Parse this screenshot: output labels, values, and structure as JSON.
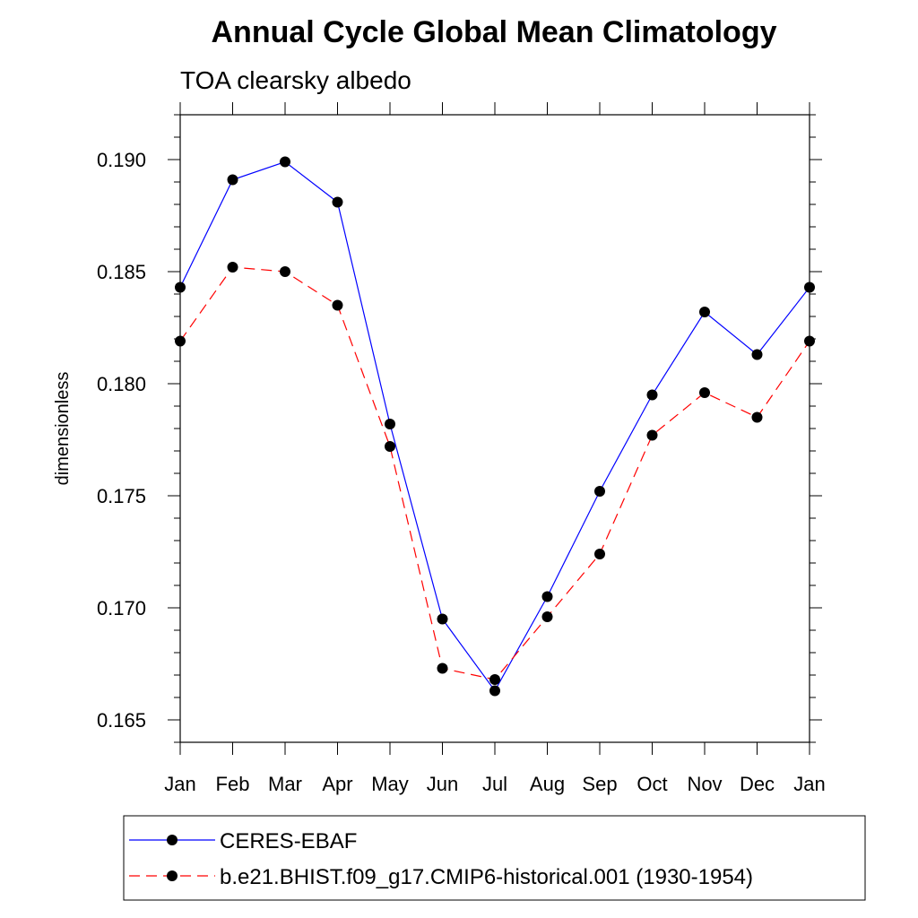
{
  "chart_data": {
    "type": "line",
    "title": "Annual Cycle Global Mean Climatology",
    "subtitle": "TOA clearsky albedo",
    "ylabel": "dimensionless",
    "xlabel": "",
    "categories": [
      "Jan",
      "Feb",
      "Mar",
      "Apr",
      "May",
      "Jun",
      "Jul",
      "Aug",
      "Sep",
      "Oct",
      "Nov",
      "Dec",
      "Jan"
    ],
    "ylim": [
      0.164,
      0.192
    ],
    "yticks": [
      0.165,
      0.17,
      0.175,
      0.18,
      0.185,
      0.19
    ],
    "ytick_labels": [
      "0.165",
      "0.170",
      "0.175",
      "0.180",
      "0.185",
      "0.190"
    ],
    "grid": false,
    "legend_position": "bottom",
    "series": [
      {
        "name": "CERES-EBAF",
        "color": "#0000ff",
        "dash": "solid",
        "marker": "filled-circle",
        "values": [
          0.1843,
          0.1891,
          0.1899,
          0.1881,
          0.1782,
          0.1695,
          0.1663,
          0.1705,
          0.1752,
          0.1795,
          0.1832,
          0.1813,
          0.1843
        ]
      },
      {
        "name": "b.e21.BHIST.f09_g17.CMIP6-historical.001 (1930-1954)",
        "color": "#ff0000",
        "dash": "dashed",
        "marker": "filled-circle",
        "values": [
          0.1819,
          0.1852,
          0.185,
          0.1835,
          0.1772,
          0.1673,
          0.1668,
          0.1696,
          0.1724,
          0.1777,
          0.1796,
          0.1785,
          0.1819
        ]
      }
    ]
  }
}
